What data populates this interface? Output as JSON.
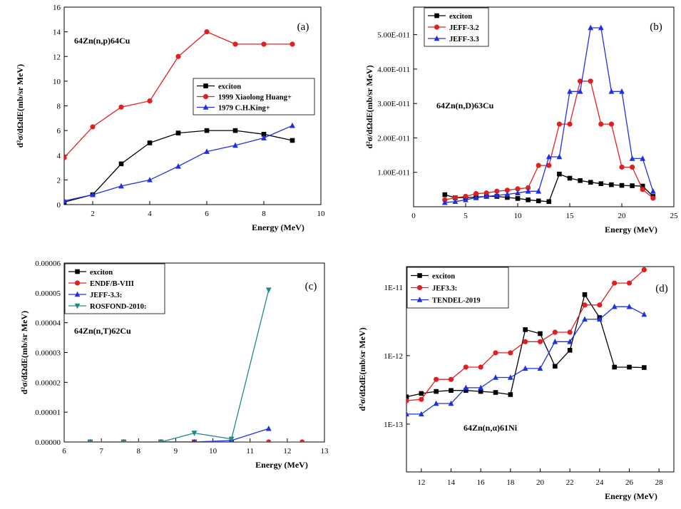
{
  "chart_data": [
    {
      "type": "line",
      "panel_label": "(a)",
      "annotation": "64Zn(n,p)64Cu",
      "xlabel": "Energy (MeV)",
      "ylabel": "d²σ/dΩdE(mb/sr MeV)",
      "xlim": [
        1,
        10
      ],
      "ylim": [
        0,
        16
      ],
      "y_scale": "linear",
      "xticks": [
        "2",
        "4",
        "6",
        "8",
        "10"
      ],
      "yticks": [
        "0",
        "2",
        "4",
        "6",
        "8",
        "10",
        "12",
        "14",
        "16"
      ],
      "legend_position": "center-right",
      "series": [
        {
          "name": "exciton",
          "color": "#000000",
          "marker": "square",
          "x": [
            1,
            2,
            3,
            4,
            5,
            6,
            7,
            8,
            9
          ],
          "y": [
            0.2,
            0.8,
            3.3,
            5.0,
            5.8,
            6.0,
            6.0,
            5.7,
            5.2
          ]
        },
        {
          "name": "1999 Xiaolong Huang+",
          "color": "#e02020",
          "marker": "circle",
          "x": [
            1,
            2,
            3,
            4,
            5,
            6,
            7,
            8,
            9
          ],
          "y": [
            3.8,
            6.3,
            7.9,
            8.4,
            12.0,
            14.0,
            13.0,
            13.0,
            13.0
          ]
        },
        {
          "name": "1979 C.H.King+",
          "color": "#2030e0",
          "marker": "triangle",
          "x": [
            1,
            2,
            3,
            4,
            5,
            6,
            7,
            8,
            9
          ],
          "y": [
            0.3,
            0.8,
            1.5,
            2.0,
            3.1,
            4.3,
            4.8,
            5.4,
            6.4
          ]
        }
      ]
    },
    {
      "type": "line",
      "panel_label": "(b)",
      "annotation": "64Zn(n,D)63Cu",
      "xlabel": "Energy (MeV)",
      "ylabel": "d²σ/dΩdE(mb/sr MeV)",
      "xlim": [
        0,
        25
      ],
      "ylim": [
        0,
        5.8e-11
      ],
      "y_scale": "linear",
      "xticks": [
        "0",
        "5",
        "10",
        "15",
        "20",
        "25"
      ],
      "yticks": [
        "1.00E-011",
        "2.00E-011",
        "3.00E-011",
        "4.00E-011",
        "5.00E-011"
      ],
      "legend_position": "top-left",
      "series": [
        {
          "name": "exciton",
          "color": "#000000",
          "marker": "square",
          "x": [
            3,
            4,
            5,
            6,
            7,
            8,
            9,
            10,
            11,
            12,
            13,
            14,
            15,
            16,
            17,
            18,
            19,
            20,
            21,
            22,
            23
          ],
          "y": [
            3.5e-12,
            2.6e-12,
            2.6e-12,
            2.8e-12,
            3e-12,
            3e-12,
            2.7e-12,
            2.4e-12,
            2e-12,
            1.7e-12,
            1.5e-12,
            9.5e-12,
            8.3e-12,
            7.6e-12,
            7.1e-12,
            6.7e-12,
            6.4e-12,
            6.2e-12,
            6.1e-12,
            6e-12,
            3e-12
          ]
        },
        {
          "name": "JEFF-3.2",
          "color": "#e02020",
          "marker": "circle",
          "x": [
            3,
            4,
            5,
            6,
            7,
            8,
            9,
            10,
            11,
            12,
            13,
            14,
            15,
            16,
            17,
            18,
            19,
            20,
            21,
            22,
            23
          ],
          "y": [
            2e-12,
            2.6e-12,
            3e-12,
            3.8e-12,
            4e-12,
            4.5e-12,
            4.8e-12,
            5.2e-12,
            5.5e-12,
            1.2e-11,
            1.2e-11,
            2.4e-11,
            2.4e-11,
            3.65e-11,
            3.65e-11,
            2.4e-11,
            2.4e-11,
            1.15e-11,
            1.15e-11,
            5e-12,
            2.5e-12
          ]
        },
        {
          "name": "JEFF-3.3",
          "color": "#2030e0",
          "marker": "triangle",
          "x": [
            3,
            4,
            5,
            6,
            7,
            8,
            9,
            10,
            11,
            12,
            13,
            14,
            15,
            16,
            17,
            18,
            19,
            20,
            21,
            22,
            23
          ],
          "y": [
            1.2e-12,
            1.5e-12,
            2e-12,
            2.6e-12,
            3e-12,
            3.3e-12,
            3.6e-12,
            4e-12,
            4.5e-12,
            4.5e-12,
            1.45e-11,
            1.45e-11,
            3.35e-11,
            3.35e-11,
            5.2e-11,
            5.2e-11,
            3.35e-11,
            3.35e-11,
            1.4e-11,
            1.4e-11,
            4.5e-12
          ]
        }
      ]
    },
    {
      "type": "line",
      "panel_label": "(c)",
      "annotation": "64Zn(n,T)62Cu",
      "xlabel": "Energy (MeV)",
      "ylabel": "d²σ/dΩdE(mb/sr MeV)",
      "xlim": [
        6,
        13
      ],
      "ylim": [
        0,
        6e-05
      ],
      "y_scale": "linear",
      "xticks": [
        "6",
        "7",
        "8",
        "9",
        "10",
        "11",
        "12",
        "13"
      ],
      "yticks": [
        "0.00000",
        "0.00001",
        "0.00002",
        "0.00003",
        "0.00004",
        "0.00005",
        "0.00006"
      ],
      "legend_position": "top-left",
      "series": [
        {
          "name": "exciton",
          "color": "#000000",
          "marker": "square",
          "x": [
            6.7,
            7.6,
            8.6,
            9.5,
            10.5
          ],
          "y": [
            0,
            0,
            0,
            0,
            0
          ]
        },
        {
          "name": "ENDF/B-VIII",
          "color": "#e02020",
          "marker": "circle",
          "x": [
            6.7,
            7.6,
            8.6,
            9.5,
            10.5,
            11.5,
            12.4
          ],
          "y": [
            0,
            0,
            0,
            0,
            0,
            0,
            0
          ]
        },
        {
          "name": "JEFF-3.3:",
          "color": "#2030e0",
          "marker": "triangle",
          "x": [
            6.7,
            7.6,
            8.6,
            9.5,
            10.5,
            11.5
          ],
          "y": [
            0,
            0,
            0,
            0,
            5e-07,
            4.5e-06
          ]
        },
        {
          "name": "ROSFOND-2010:",
          "color": "#208888",
          "marker": "triangle-down",
          "x": [
            6.7,
            7.6,
            8.6,
            9.5,
            10.5,
            11.5
          ],
          "y": [
            0,
            0,
            0,
            3e-06,
            1e-06,
            5.1e-05
          ]
        }
      ]
    },
    {
      "type": "line",
      "panel_label": "(d)",
      "annotation": "64Zn(n,α)61Ni",
      "xlabel": "Energy (MeV)",
      "ylabel": "d²σ/dΩdE(mb/sr MeV)",
      "xlim": [
        11,
        29
      ],
      "ylim": [
        2e-14,
        2e-11
      ],
      "y_scale": "log",
      "xticks": [
        "12",
        "14",
        "16",
        "18",
        "20",
        "22",
        "24",
        "26",
        "28"
      ],
      "yticks": [
        "1E-13",
        "1E-12",
        "1E-11"
      ],
      "legend_position": "top-left",
      "series": [
        {
          "name": "exciton",
          "color": "#000000",
          "marker": "square",
          "x": [
            11,
            12,
            13,
            14,
            15,
            16,
            17,
            18,
            19,
            20,
            21,
            22,
            23,
            24,
            25,
            26,
            27
          ],
          "y": [
            2.5e-13,
            2.8e-13,
            3e-13,
            3.1e-13,
            3.1e-13,
            3e-13,
            2.9e-13,
            2.7e-13,
            2.4e-12,
            2.1e-12,
            7e-13,
            1.2e-12,
            7.8e-12,
            3.6e-12,
            6.8e-13,
            6.8e-13,
            6.7e-13
          ]
        },
        {
          "name": "JEF3.3:",
          "color": "#e02020",
          "marker": "circle",
          "x": [
            11,
            12,
            13,
            14,
            15,
            16,
            17,
            18,
            19,
            20,
            21,
            22,
            23,
            24,
            25,
            26,
            27
          ],
          "y": [
            2.2e-13,
            2.3e-13,
            4.5e-13,
            4.5e-13,
            6.8e-13,
            6.8e-13,
            1.1e-12,
            1.1e-12,
            1.6e-12,
            1.6e-12,
            2.2e-12,
            2.2e-12,
            5.5e-12,
            5.5e-12,
            1.15e-11,
            1.15e-11,
            1.8e-11
          ]
        },
        {
          "name": "TENDEL-2019",
          "color": "#2030e0",
          "marker": "triangle",
          "x": [
            11,
            12,
            13,
            14,
            15,
            16,
            17,
            18,
            19,
            20,
            21,
            22,
            23,
            24,
            25,
            26,
            27
          ],
          "y": [
            1.4e-13,
            1.4e-13,
            2e-13,
            2e-13,
            3.4e-13,
            3.4e-13,
            4.8e-13,
            4.8e-13,
            6.5e-13,
            6.5e-13,
            1.6e-12,
            1.6e-12,
            3.4e-12,
            3.4e-12,
            5.2e-12,
            5.2e-12,
            4e-12
          ]
        }
      ]
    }
  ]
}
